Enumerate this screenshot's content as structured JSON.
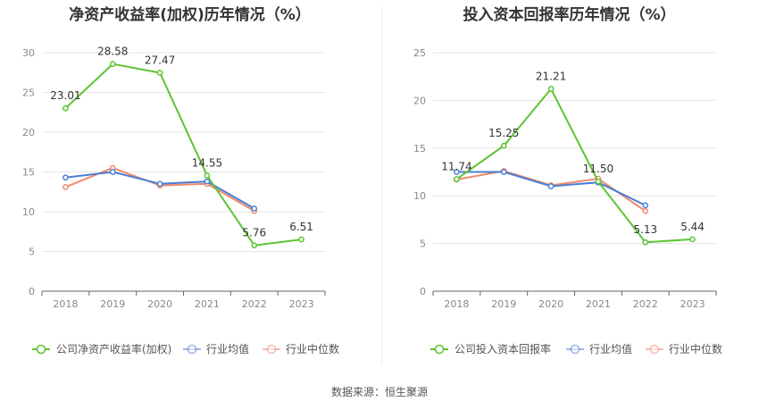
{
  "chart_data": [
    {
      "type": "line",
      "title": "净资产收益率(加权)历年情况（%）",
      "categories": [
        "2018",
        "2019",
        "2020",
        "2021",
        "2022",
        "2023"
      ],
      "ylim": [
        0,
        30
      ],
      "yticks": [
        0,
        5,
        10,
        15,
        20,
        25,
        30
      ],
      "grid": true,
      "legend": "bottom-left",
      "series": [
        {
          "name": "公司净资产收益率(加权)",
          "color": "#5cc433",
          "values": [
            23.01,
            28.58,
            27.47,
            14.55,
            5.76,
            6.51
          ],
          "labels": [
            "23.01",
            "28.58",
            "27.47",
            "14.55",
            "5.76",
            "6.51"
          ]
        },
        {
          "name": "行业均值",
          "color": "#4a7fd6",
          "values": [
            14.3,
            15.0,
            13.5,
            13.8,
            10.4,
            null
          ]
        },
        {
          "name": "行业中位数",
          "color": "#ef8a6a",
          "values": [
            13.1,
            15.5,
            13.3,
            13.5,
            10.1,
            null
          ]
        }
      ]
    },
    {
      "type": "line",
      "title": "投入资本回报率历年情况（%）",
      "categories": [
        "2018",
        "2019",
        "2020",
        "2021",
        "2022",
        "2023"
      ],
      "ylim": [
        0,
        25
      ],
      "yticks": [
        0,
        5,
        10,
        15,
        20,
        25
      ],
      "grid": true,
      "legend": "bottom-left",
      "series": [
        {
          "name": "公司投入资本回报率",
          "color": "#5cc433",
          "values": [
            11.74,
            15.25,
            21.21,
            11.5,
            5.13,
            5.44
          ],
          "labels": [
            "11.74",
            "15.25",
            "21.21",
            "11.50",
            "5.13",
            "5.44"
          ]
        },
        {
          "name": "行业均值",
          "color": "#4a7fd6",
          "values": [
            12.5,
            12.5,
            11.0,
            11.4,
            9.0,
            null
          ]
        },
        {
          "name": "行业中位数",
          "color": "#ef8a6a",
          "values": [
            11.7,
            12.6,
            11.1,
            11.8,
            8.4,
            null
          ]
        }
      ]
    }
  ],
  "source": "数据来源：恒生聚源"
}
